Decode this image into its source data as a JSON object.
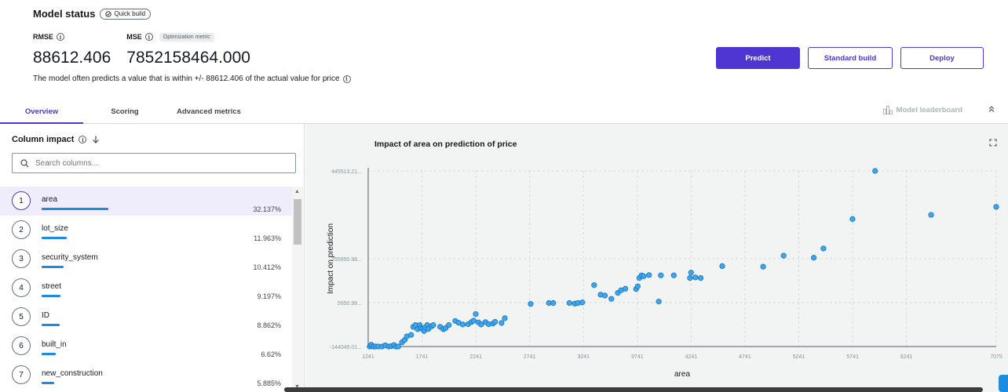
{
  "header": {
    "title": "Model status",
    "chip_label": "Quick build",
    "metrics": [
      {
        "label": "RMSE",
        "value": "88612.406",
        "badge": ""
      },
      {
        "label": "MSE",
        "value": "7852158464.000",
        "badge": "Optimization metric"
      }
    ],
    "description": "The model often predicts a value that is within +/- 88612.406 of the actual value for price"
  },
  "buttons": {
    "predict": "Predict",
    "standard_build": "Standard build",
    "deploy": "Deploy"
  },
  "tabs": [
    {
      "label": "Overview",
      "active": true
    },
    {
      "label": "Scoring",
      "active": false
    },
    {
      "label": "Advanced metrics",
      "active": false
    }
  ],
  "leaderboard_label": "Model leaderboard",
  "column_impact": {
    "title": "Column impact",
    "search_placeholder": "Search columns...",
    "rows": [
      {
        "rank": "1",
        "name": "area",
        "pct": "32.137%",
        "value": 32.137
      },
      {
        "rank": "2",
        "name": "lot_size",
        "pct": "11.963%",
        "value": 11.963
      },
      {
        "rank": "3",
        "name": "security_system",
        "pct": "10.412%",
        "value": 10.412
      },
      {
        "rank": "4",
        "name": "street",
        "pct": "9.197%",
        "value": 9.197
      },
      {
        "rank": "5",
        "name": "ID",
        "pct": "8.862%",
        "value": 8.862
      },
      {
        "rank": "6",
        "name": "built_in",
        "pct": "6.62%",
        "value": 6.62
      },
      {
        "rank": "7",
        "name": "new_construction",
        "pct": "5.885%",
        "value": 5.885
      }
    ]
  },
  "colors": {
    "accent": "#4f35d1",
    "bar": "#1d8be0",
    "point": "#3ea6ec"
  },
  "chart_data": {
    "type": "scatter",
    "title": "Impact of area on prediction of price",
    "xlabel": "area",
    "ylabel": "Impact on prediction",
    "x_ticks": [
      "1241",
      "1741",
      "2241",
      "2741",
      "3241",
      "3741",
      "4241",
      "4741",
      "5241",
      "5741",
      "6241",
      "7075"
    ],
    "y_ticks": [
      "445513.21...",
      "255950.98...",
      "5950.98...",
      "-144049.01..."
    ],
    "x_tick_values": [
      1241,
      1741,
      2241,
      2741,
      3241,
      3741,
      4241,
      4741,
      5241,
      5741,
      6241,
      7075
    ],
    "xlim": [
      1241,
      7075
    ],
    "ylim": [
      -144049.01,
      445513.21
    ],
    "grid": true,
    "points": [
      [
        1241,
        -144049
      ],
      [
        1260,
        -150000
      ],
      [
        1270,
        -138000
      ],
      [
        1290,
        -146000
      ],
      [
        1310,
        -151000
      ],
      [
        1335,
        -144000
      ],
      [
        1370,
        -147000
      ],
      [
        1400,
        -140000
      ],
      [
        1430,
        -151000
      ],
      [
        1455,
        -143000
      ],
      [
        1480,
        -139000
      ],
      [
        1500,
        -149000
      ],
      [
        1520,
        -144000
      ],
      [
        1555,
        -130000
      ],
      [
        1580,
        -122000
      ],
      [
        1600,
        -110000
      ],
      [
        1640,
        -105000
      ],
      [
        1660,
        -78000
      ],
      [
        1680,
        -72000
      ],
      [
        1700,
        -86000
      ],
      [
        1720,
        -72000
      ],
      [
        1730,
        -82000
      ],
      [
        1745,
        -85000
      ],
      [
        1760,
        -92000
      ],
      [
        1770,
        -80000
      ],
      [
        1790,
        -72000
      ],
      [
        1800,
        -85000
      ],
      [
        1830,
        -76000
      ],
      [
        1845,
        -72000
      ],
      [
        1910,
        -78000
      ],
      [
        1940,
        -86000
      ],
      [
        1960,
        -82000
      ],
      [
        1990,
        -72000
      ],
      [
        2050,
        -58000
      ],
      [
        2080,
        -64000
      ],
      [
        2120,
        -70000
      ],
      [
        2170,
        -69000
      ],
      [
        2200,
        -62000
      ],
      [
        2220,
        -57000
      ],
      [
        2240,
        -35000
      ],
      [
        2265,
        -63000
      ],
      [
        2290,
        -70000
      ],
      [
        2330,
        -62000
      ],
      [
        2360,
        -69000
      ],
      [
        2400,
        -67000
      ],
      [
        2420,
        -61000
      ],
      [
        2480,
        -65000
      ],
      [
        2510,
        -49000
      ],
      [
        2750,
        -1000
      ],
      [
        2920,
        2000
      ],
      [
        2960,
        2000
      ],
      [
        3110,
        2000
      ],
      [
        3160,
        0
      ],
      [
        3190,
        2000
      ],
      [
        3230,
        4000
      ],
      [
        3340,
        62000
      ],
      [
        3400,
        30000
      ],
      [
        3440,
        27000
      ],
      [
        3500,
        16000
      ],
      [
        3560,
        36000
      ],
      [
        3590,
        45000
      ],
      [
        3630,
        50000
      ],
      [
        3730,
        49000
      ],
      [
        3745,
        58000
      ],
      [
        3760,
        86000
      ],
      [
        3780,
        95000
      ],
      [
        3800,
        92000
      ],
      [
        3850,
        96000
      ],
      [
        3940,
        7000
      ],
      [
        3960,
        95000
      ],
      [
        4080,
        95000
      ],
      [
        4230,
        86000
      ],
      [
        4240,
        104000
      ],
      [
        4280,
        88000
      ],
      [
        4330,
        86000
      ],
      [
        4530,
        126000
      ],
      [
        4910,
        124000
      ],
      [
        5100,
        161000
      ],
      [
        5380,
        154000
      ],
      [
        5470,
        185000
      ],
      [
        5740,
        284000
      ],
      [
        5950,
        445513
      ],
      [
        6470,
        298000
      ],
      [
        7075,
        325000
      ]
    ]
  }
}
